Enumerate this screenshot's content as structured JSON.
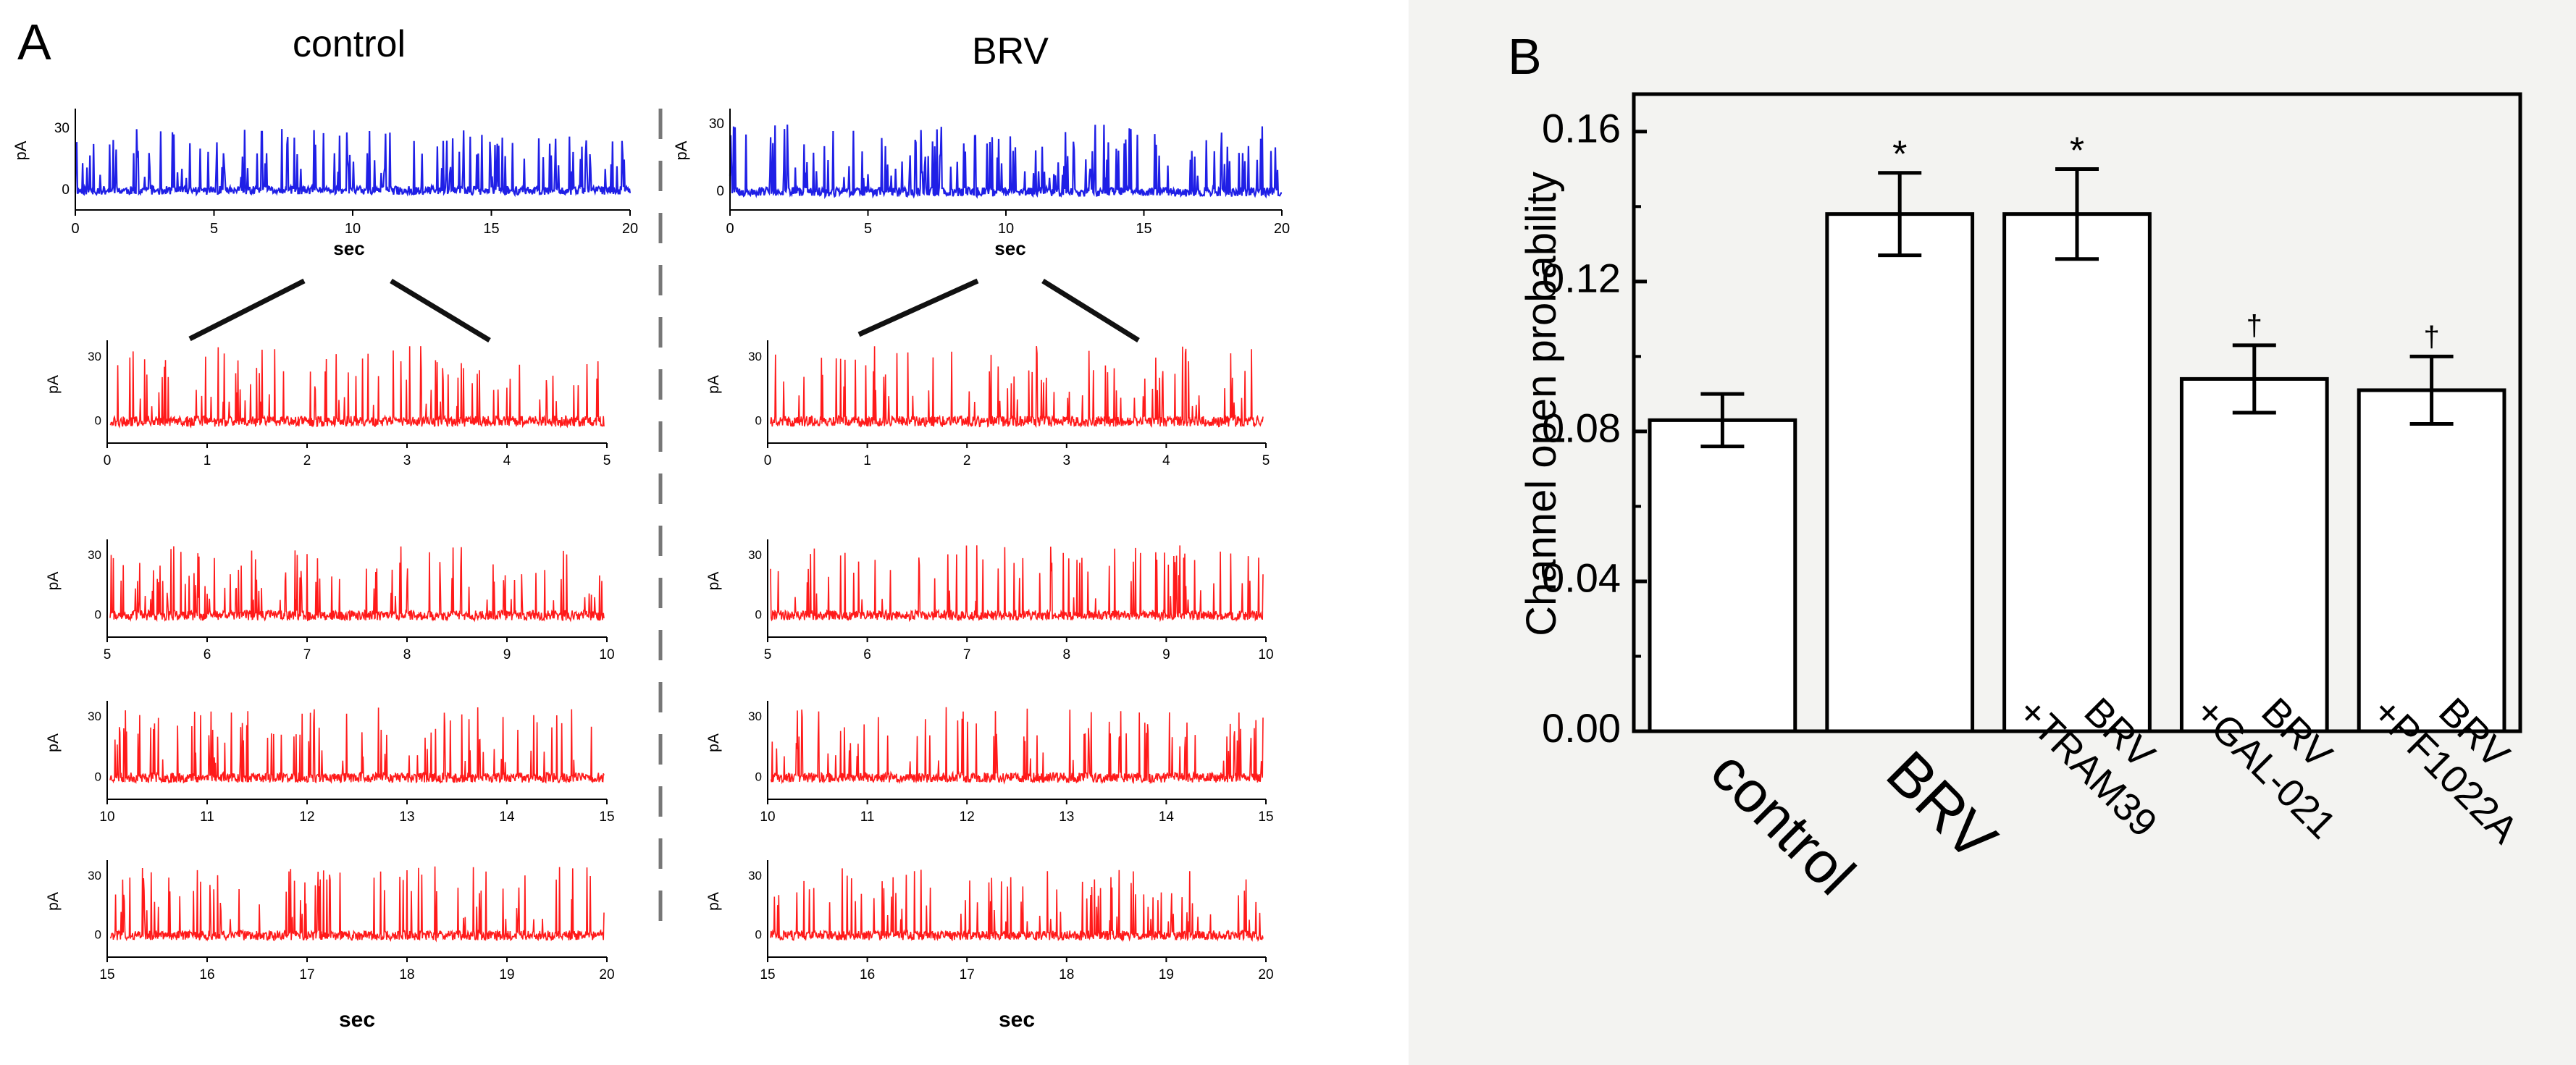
{
  "panels": {
    "A": {
      "label": "A"
    },
    "B": {
      "label": "B"
    }
  },
  "colors": {
    "overview_trace": "#1f1fe6",
    "zoom_trace": "#ff1a1a",
    "bar_fill": "#ffffff",
    "bar_stroke": "#000000",
    "panel_b_background": "#f3f3f1"
  },
  "chart_data": [
    {
      "id": "control_traces",
      "type": "line",
      "title": "control",
      "overview": {
        "ylabel": "pA",
        "xlabel": "sec",
        "xlim": [
          0,
          20
        ],
        "ylim": [
          -5,
          35
        ],
        "yticks": [
          0,
          30
        ],
        "xticks": [
          "0",
          "5",
          "10",
          "15",
          "20"
        ],
        "trace_seed": 11
      },
      "zooms": [
        {
          "ylabel": "pA",
          "xlim": [
            0,
            5
          ],
          "xticks": [
            "0",
            "1",
            "2",
            "3",
            "4",
            "5"
          ],
          "yticks": [
            0,
            30
          ],
          "trace_seed": 21
        },
        {
          "ylabel": "pA",
          "xlim": [
            5,
            10
          ],
          "xticks": [
            "5",
            "6",
            "7",
            "8",
            "9",
            "10"
          ],
          "yticks": [
            0,
            30
          ],
          "trace_seed": 22
        },
        {
          "ylabel": "pA",
          "xlim": [
            10,
            15
          ],
          "xticks": [
            "10",
            "11",
            "12",
            "13",
            "14",
            "15"
          ],
          "yticks": [
            0,
            30
          ],
          "trace_seed": 23
        },
        {
          "ylabel": "pA",
          "xlim": [
            15,
            20
          ],
          "xticks": [
            "15",
            "16",
            "17",
            "18",
            "19",
            "20"
          ],
          "yticks": [
            0,
            30
          ],
          "trace_seed": 24,
          "xlabel": "sec"
        }
      ]
    },
    {
      "id": "brv_traces",
      "type": "line",
      "title": "BRV",
      "overview": {
        "ylabel": "pA",
        "xlabel": "sec",
        "xlim": [
          0,
          20
        ],
        "ylim": [
          -5,
          35
        ],
        "yticks": [
          0,
          30
        ],
        "xticks": [
          "0",
          "5",
          "10",
          "15",
          "20"
        ],
        "trace_seed": 31
      },
      "zooms": [
        {
          "ylabel": "pA",
          "xlim": [
            0,
            5
          ],
          "xticks": [
            "0",
            "1",
            "2",
            "3",
            "4",
            "5"
          ],
          "yticks": [
            0,
            30
          ],
          "trace_seed": 41
        },
        {
          "ylabel": "pA",
          "xlim": [
            5,
            10
          ],
          "xticks": [
            "5",
            "6",
            "7",
            "8",
            "9",
            "10"
          ],
          "yticks": [
            0,
            30
          ],
          "trace_seed": 42
        },
        {
          "ylabel": "pA",
          "xlim": [
            10,
            15
          ],
          "xticks": [
            "10",
            "11",
            "12",
            "13",
            "14",
            "15"
          ],
          "yticks": [
            0,
            30
          ],
          "trace_seed": 43
        },
        {
          "ylabel": "pA",
          "xlim": [
            15,
            20
          ],
          "xticks": [
            "15",
            "16",
            "17",
            "18",
            "19",
            "20"
          ],
          "yticks": [
            0,
            30
          ],
          "trace_seed": 44,
          "xlabel": "sec"
        }
      ]
    },
    {
      "id": "open_probability",
      "type": "bar",
      "title": "",
      "ylabel": "Channel open probability",
      "ylim": [
        0,
        0.17
      ],
      "yticks": [
        "0.00",
        "0.04",
        "0.08",
        "0.12",
        "0.16"
      ],
      "categories": [
        {
          "line1": "control",
          "line2": ""
        },
        {
          "line1": "BRV",
          "line2": ""
        },
        {
          "line1": "BRV",
          "line2": "+TRAM39"
        },
        {
          "line1": "BRV",
          "line2": "+GAL-021"
        },
        {
          "line1": "BRV",
          "line2": "+PF1022A"
        }
      ],
      "values": [
        0.083,
        0.138,
        0.138,
        0.094,
        0.091
      ],
      "errors": [
        0.007,
        0.011,
        0.012,
        0.009,
        0.009
      ],
      "annotations": [
        "",
        "*",
        "*",
        "†",
        "†"
      ]
    }
  ]
}
